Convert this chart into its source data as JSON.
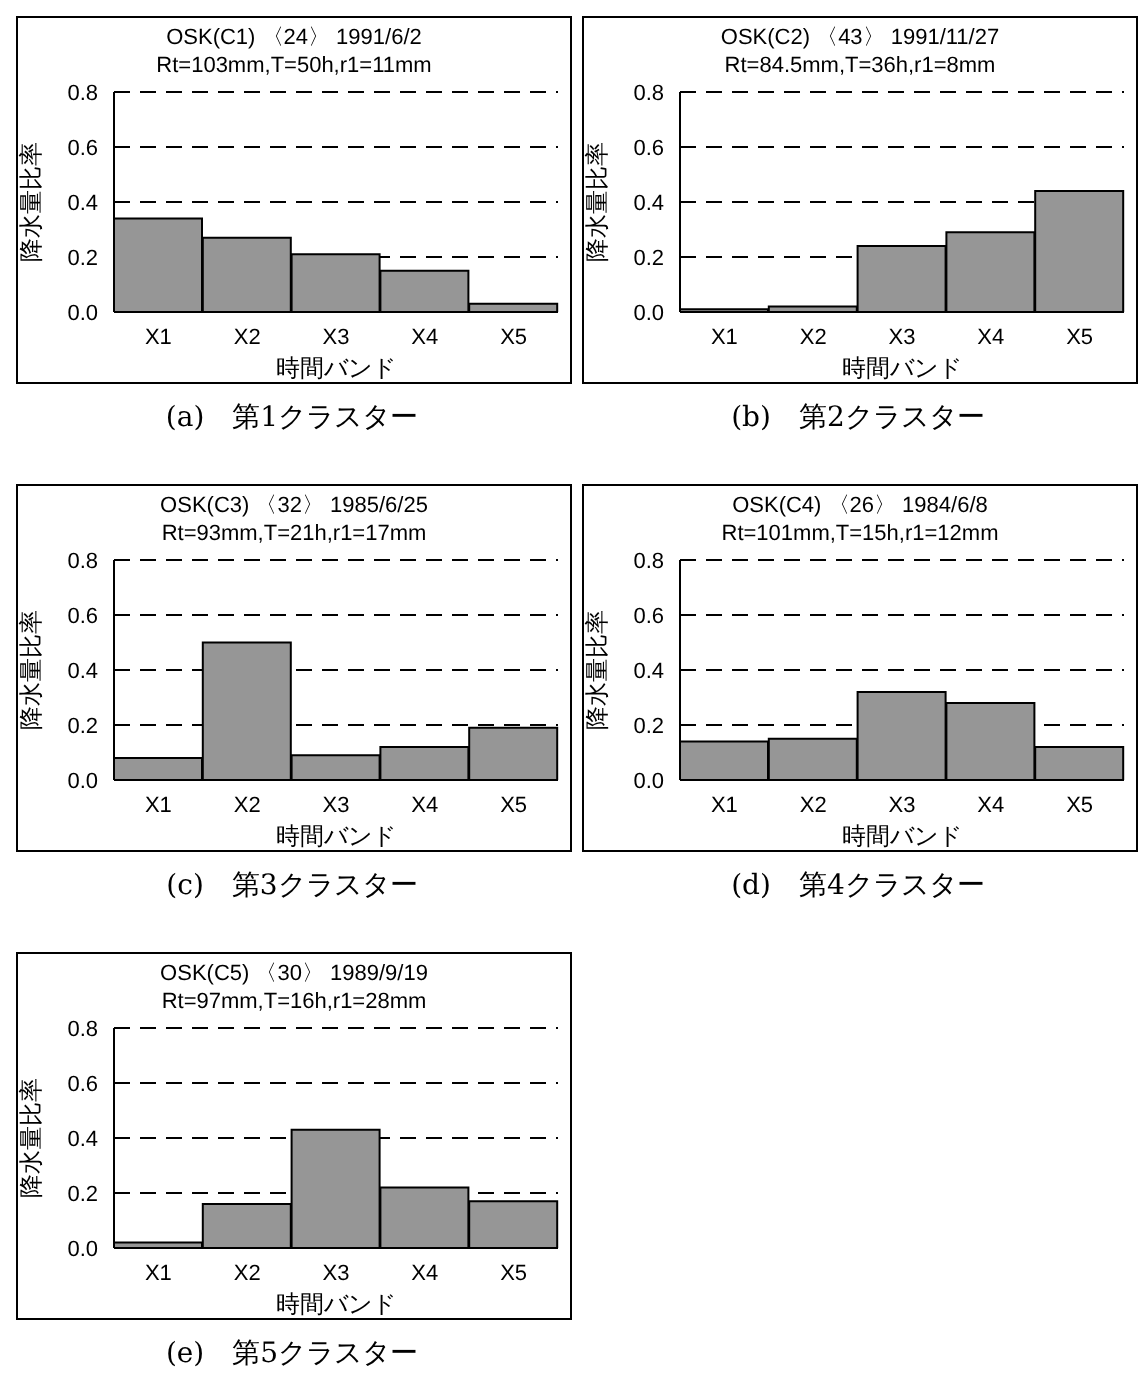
{
  "chart_data": [
    {
      "type": "bar",
      "title": "OSK(C1) 〈24〉 1991/6/2",
      "subtitle": "Rt=103mm,T=50h,r1=11mm",
      "xlabel": "時間バンド",
      "ylabel": "降水量比率",
      "categories": [
        "X1",
        "X2",
        "X3",
        "X4",
        "X5"
      ],
      "values": [
        0.34,
        0.27,
        0.21,
        0.15,
        0.03
      ],
      "color": "#969696",
      "ylim": [
        0,
        0.8
      ],
      "yticks": [
        {
          "value": 0,
          "label": "0.0"
        },
        {
          "value": 0.2,
          "label": "0.2"
        },
        {
          "value": 0.4,
          "label": "0.4"
        },
        {
          "value": 0.6,
          "label": "0.6"
        },
        {
          "value": 0.8,
          "label": "0.8"
        }
      ],
      "grid": "y",
      "annotations": [
        "(a)　第1クラスター"
      ]
    },
    {
      "type": "bar",
      "title": "OSK(C2) 〈43〉 1991/11/27",
      "subtitle": "Rt=84.5mm,T=36h,r1=8mm",
      "xlabel": "時間バンド",
      "ylabel": "降水量比率",
      "categories": [
        "X1",
        "X2",
        "X3",
        "X4",
        "X5"
      ],
      "values": [
        0.01,
        0.02,
        0.24,
        0.29,
        0.44
      ],
      "color": "#969696",
      "ylim": [
        0,
        0.8
      ],
      "yticks": [
        {
          "value": 0,
          "label": "0.0"
        },
        {
          "value": 0.2,
          "label": "0.2"
        },
        {
          "value": 0.4,
          "label": "0.4"
        },
        {
          "value": 0.6,
          "label": "0.6"
        },
        {
          "value": 0.8,
          "label": "0.8"
        }
      ],
      "grid": "y",
      "annotations": [
        "(b)　第2クラスター"
      ]
    },
    {
      "type": "bar",
      "title": "OSK(C3) 〈32〉 1985/6/25",
      "subtitle": "Rt=93mm,T=21h,r1=17mm",
      "xlabel": "時間バンド",
      "ylabel": "降水量比率",
      "categories": [
        "X1",
        "X2",
        "X3",
        "X4",
        "X5"
      ],
      "values": [
        0.08,
        0.5,
        0.09,
        0.12,
        0.19
      ],
      "color": "#969696",
      "ylim": [
        0,
        0.8
      ],
      "yticks": [
        {
          "value": 0,
          "label": "0.0"
        },
        {
          "value": 0.2,
          "label": "0.2"
        },
        {
          "value": 0.4,
          "label": "0.4"
        },
        {
          "value": 0.6,
          "label": "0.6"
        },
        {
          "value": 0.8,
          "label": "0.8"
        }
      ],
      "grid": "y",
      "annotations": [
        "(c)　第3クラスター"
      ]
    },
    {
      "type": "bar",
      "title": "OSK(C4) 〈26〉 1984/6/8",
      "subtitle": "Rt=101mm,T=15h,r1=12mm",
      "xlabel": "時間バンド",
      "ylabel": "降水量比率",
      "categories": [
        "X1",
        "X2",
        "X3",
        "X4",
        "X5"
      ],
      "values": [
        0.14,
        0.15,
        0.32,
        0.28,
        0.12
      ],
      "color": "#969696",
      "ylim": [
        0,
        0.8
      ],
      "yticks": [
        {
          "value": 0,
          "label": "0.0"
        },
        {
          "value": 0.2,
          "label": "0.2"
        },
        {
          "value": 0.4,
          "label": "0.4"
        },
        {
          "value": 0.6,
          "label": "0.6"
        },
        {
          "value": 0.8,
          "label": "0.8"
        }
      ],
      "grid": "y",
      "annotations": [
        "(d)　第4クラスター"
      ]
    },
    {
      "type": "bar",
      "title": "OSK(C5) 〈30〉 1989/9/19",
      "subtitle": "Rt=97mm,T=16h,r1=28mm",
      "xlabel": "時間バンド",
      "ylabel": "降水量比率",
      "categories": [
        "X1",
        "X2",
        "X3",
        "X4",
        "X5"
      ],
      "values": [
        0.02,
        0.16,
        0.43,
        0.22,
        0.17
      ],
      "color": "#969696",
      "ylim": [
        0,
        0.8
      ],
      "yticks": [
        {
          "value": 0,
          "label": "0.0"
        },
        {
          "value": 0.2,
          "label": "0.2"
        },
        {
          "value": 0.4,
          "label": "0.4"
        },
        {
          "value": 0.6,
          "label": "0.6"
        },
        {
          "value": 0.8,
          "label": "0.8"
        }
      ],
      "grid": "y",
      "annotations": [
        "(e)　第5クラスター"
      ]
    }
  ]
}
